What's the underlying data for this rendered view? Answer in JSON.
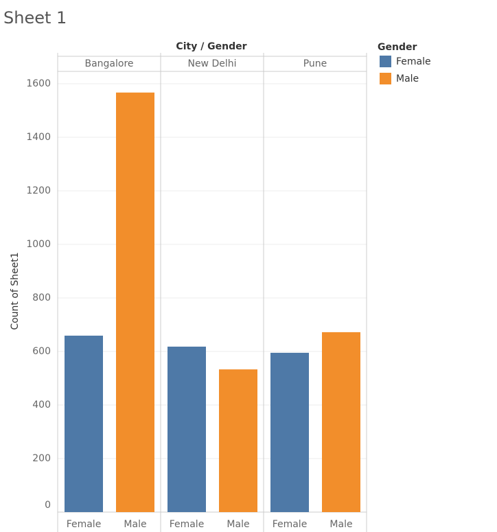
{
  "chart_data": {
    "type": "bar",
    "title": "Sheet 1",
    "column_header": "City / Gender",
    "y_label": "Count of Sheet1",
    "legend_title": "Gender",
    "categories": [
      "Bangalore",
      "New Delhi",
      "Pune"
    ],
    "series": [
      {
        "name": "Female",
        "color": "#4e79a7",
        "values": [
          659,
          618,
          595
        ]
      },
      {
        "name": "Male",
        "color": "#f28e2b",
        "values": [
          1567,
          533,
          672
        ]
      }
    ],
    "ylim": [
      0,
      1646
    ],
    "yticks": [
      0,
      200,
      400,
      600,
      800,
      1000,
      1200,
      1400,
      1600
    ],
    "grid": true
  }
}
